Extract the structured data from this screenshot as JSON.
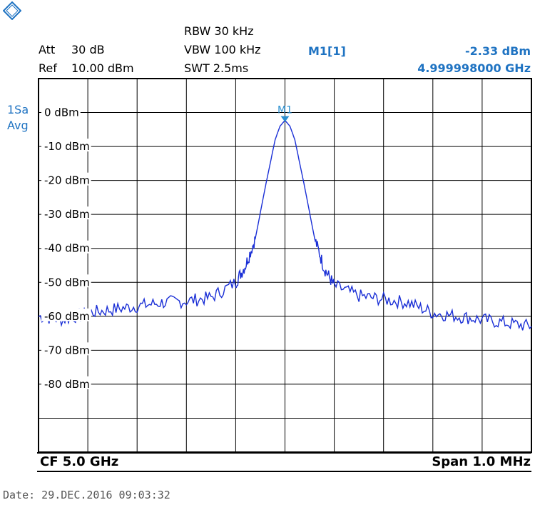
{
  "header": {
    "att_label": "Att",
    "att_value": "30 dB",
    "ref_label": "Ref",
    "ref_value": "10.00 dBm",
    "rbw": "RBW 30 kHz",
    "vbw": "VBW 100 kHz",
    "swt": "SWT 2.5ms",
    "marker_name": "M1[1]",
    "marker_level": "-2.33 dBm",
    "marker_freq": "4.999998000 GHz"
  },
  "trace_info": {
    "line1": "1Sa",
    "line2": "Avg"
  },
  "footer": {
    "cf": "CF 5.0 GHz",
    "span": "Span 1.0 MHz",
    "date": "Date: 29.DEC.2016  09:03:32"
  },
  "colors": {
    "trace": "#1a2fd6",
    "marker": "#2a8fd0",
    "info": "#1f73c2",
    "grid": "#000000"
  },
  "chart_data": {
    "type": "line",
    "xlabel": "",
    "ylabel": "",
    "xlim": [
      -0.5,
      0.5
    ],
    "ylim": [
      -100,
      10
    ],
    "yticks": [
      0,
      -10,
      -20,
      -30,
      -40,
      -50,
      -60,
      -70,
      -80
    ],
    "ytick_labels": [
      "0 dBm",
      "-10 dBm",
      "-20 dBm",
      "-30 dBm",
      "-40 dBm",
      "-50 dBm",
      "-60 dBm",
      "-70 dBm",
      "-80 dBm"
    ],
    "grid": true,
    "marker": {
      "label": "M1",
      "x": 0.0,
      "y": -2.33
    },
    "series": [
      {
        "x": [
          -0.5,
          -0.45,
          -0.4,
          -0.35,
          -0.3,
          -0.25,
          -0.2,
          -0.15,
          -0.1,
          -0.08,
          -0.06,
          -0.04,
          -0.03,
          -0.02,
          -0.01,
          0.0,
          0.01,
          0.02,
          0.03,
          0.04,
          0.06,
          0.08,
          0.1,
          0.15,
          0.2,
          0.25,
          0.3,
          0.35,
          0.4,
          0.45,
          0.5
        ],
        "values": [
          -60,
          -61,
          -59,
          -58,
          -57,
          -56,
          -55.5,
          -54.5,
          -50,
          -45,
          -37,
          -22,
          -15,
          -8,
          -4,
          -2.3,
          -4,
          -8,
          -15,
          -22,
          -37,
          -46,
          -51,
          -54,
          -55,
          -56,
          -59,
          -60,
          -61,
          -62,
          -63
        ]
      }
    ]
  }
}
